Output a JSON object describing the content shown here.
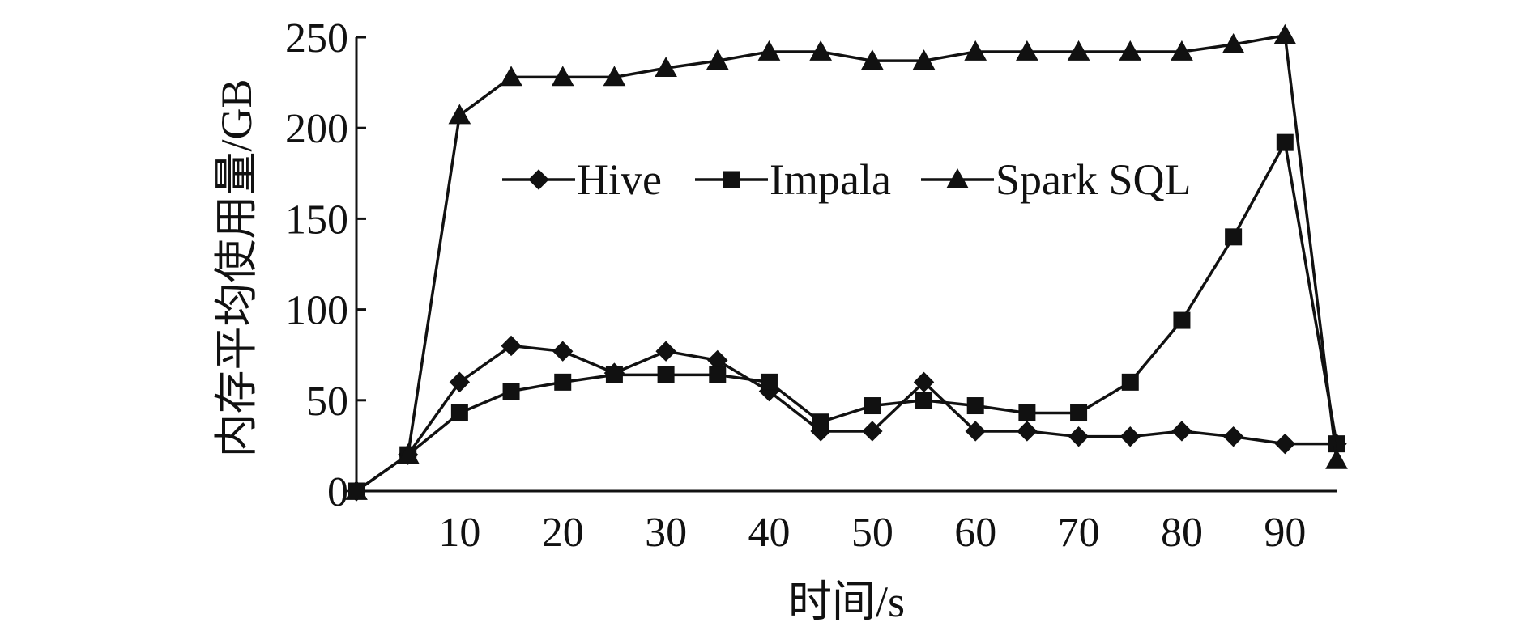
{
  "chart_data": {
    "type": "line",
    "xlabel": "时间/s",
    "ylabel": "内存平均使用量/GB",
    "xlim": [
      0,
      95
    ],
    "ylim": [
      0,
      250
    ],
    "xticks": [
      10,
      20,
      30,
      40,
      50,
      60,
      70,
      80,
      90
    ],
    "yticks": [
      0,
      50,
      100,
      150,
      200,
      250
    ],
    "legend_position": "upper-center",
    "grid": false,
    "series": [
      {
        "name": "Hive",
        "marker": "diamond",
        "x": [
          0,
          5,
          10,
          15,
          20,
          25,
          30,
          35,
          40,
          45,
          50,
          55,
          60,
          65,
          70,
          75,
          80,
          85,
          90,
          95
        ],
        "y": [
          0,
          20,
          60,
          80,
          77,
          65,
          77,
          72,
          55,
          33,
          33,
          60,
          33,
          33,
          30,
          30,
          33,
          30,
          26,
          26
        ]
      },
      {
        "name": "Impala",
        "marker": "square",
        "x": [
          0,
          5,
          10,
          15,
          20,
          25,
          30,
          35,
          40,
          45,
          50,
          55,
          60,
          65,
          70,
          75,
          80,
          85,
          90,
          95
        ],
        "y": [
          0,
          20,
          43,
          55,
          60,
          64,
          64,
          64,
          60,
          38,
          47,
          50,
          47,
          43,
          43,
          60,
          94,
          140,
          192,
          26
        ]
      },
      {
        "name": "Spark SQL",
        "marker": "triangle",
        "x": [
          0,
          5,
          10,
          15,
          20,
          25,
          30,
          35,
          40,
          45,
          50,
          55,
          60,
          65,
          70,
          75,
          80,
          85,
          90,
          95
        ],
        "y": [
          0,
          20,
          207,
          228,
          228,
          228,
          233,
          237,
          242,
          242,
          237,
          237,
          242,
          242,
          242,
          242,
          242,
          246,
          251,
          17
        ]
      }
    ]
  }
}
